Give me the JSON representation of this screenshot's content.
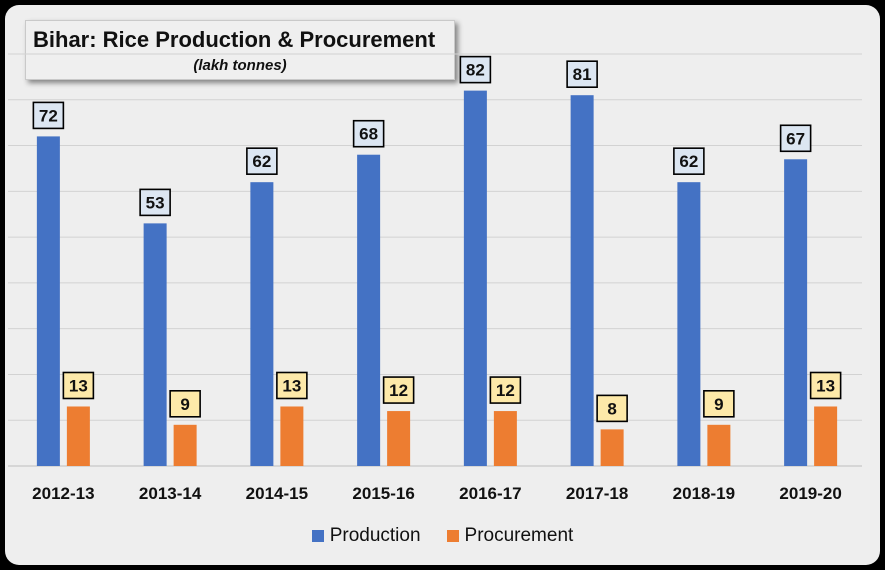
{
  "colors": {
    "production": "#4472c4",
    "procurement": "#ed7d31",
    "production_label_bg": "#dce6f2",
    "procurement_label_bg": "#fde9a9"
  },
  "chart_data": {
    "type": "bar",
    "title": "Bihar: Rice Production & Procurement",
    "subtitle": "(lakh tonnes)",
    "categories": [
      "2012-13",
      "2013-14",
      "2014-15",
      "2015-16",
      "2016-17",
      "2017-18",
      "2018-19",
      "2019-20"
    ],
    "series": [
      {
        "name": "Production",
        "values": [
          72,
          53,
          62,
          68,
          82,
          81,
          62,
          67
        ]
      },
      {
        "name": "Procurement",
        "values": [
          13,
          9,
          13,
          12,
          12,
          8,
          9,
          13
        ]
      }
    ],
    "ylim": [
      0,
      90
    ],
    "grid": true,
    "legend_position": "bottom"
  }
}
